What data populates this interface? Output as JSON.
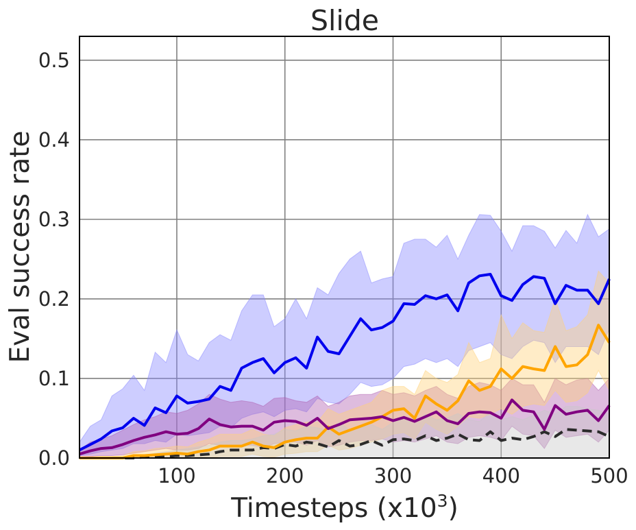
{
  "chart_data": {
    "type": "line",
    "title": "Slide",
    "xlabel": "Timesteps (x10",
    "xlabel_sup": "3",
    "xlabel_close": ")",
    "ylabel": "Eval success rate",
    "xlim": [
      10,
      500
    ],
    "ylim": [
      0,
      0.53
    ],
    "xticks": [
      100,
      200,
      300,
      400,
      500
    ],
    "yticks": [
      0.0,
      0.1,
      0.2,
      0.3,
      0.4,
      0.5
    ],
    "xtick_labels": [
      "100",
      "200",
      "300",
      "400",
      "500"
    ],
    "ytick_labels": [
      "0.0",
      "0.1",
      "0.2",
      "0.3",
      "0.4",
      "0.5"
    ],
    "grid": true,
    "x": [
      10,
      20,
      30,
      40,
      50,
      60,
      70,
      80,
      90,
      100,
      110,
      120,
      130,
      140,
      150,
      160,
      170,
      180,
      190,
      200,
      210,
      220,
      230,
      240,
      250,
      260,
      270,
      280,
      290,
      300,
      310,
      320,
      330,
      340,
      350,
      360,
      370,
      380,
      390,
      400,
      410,
      420,
      430,
      440,
      450,
      460,
      470,
      480,
      490,
      500
    ],
    "series": [
      {
        "color": "#0000ee",
        "fill": "#8888ff",
        "dash": false,
        "mean": [
          0.01,
          0.017,
          0.024,
          0.034,
          0.038,
          0.05,
          0.041,
          0.063,
          0.057,
          0.078,
          0.069,
          0.071,
          0.074,
          0.09,
          0.085,
          0.113,
          0.12,
          0.125,
          0.107,
          0.12,
          0.126,
          0.113,
          0.152,
          0.134,
          0.131,
          0.153,
          0.175,
          0.161,
          0.164,
          0.172,
          0.194,
          0.193,
          0.204,
          0.2,
          0.205,
          0.185,
          0.22,
          0.229,
          0.231,
          0.204,
          0.198,
          0.218,
          0.228,
          0.226,
          0.194,
          0.217,
          0.211,
          0.211,
          0.194,
          0.225
        ],
        "upper": [
          0.02,
          0.04,
          0.048,
          0.078,
          0.087,
          0.104,
          0.085,
          0.133,
          0.12,
          0.161,
          0.13,
          0.122,
          0.145,
          0.155,
          0.148,
          0.185,
          0.205,
          0.205,
          0.165,
          0.175,
          0.2,
          0.175,
          0.214,
          0.205,
          0.232,
          0.25,
          0.26,
          0.22,
          0.225,
          0.228,
          0.27,
          0.275,
          0.275,
          0.265,
          0.28,
          0.25,
          0.28,
          0.306,
          0.305,
          0.285,
          0.26,
          0.292,
          0.292,
          0.285,
          0.264,
          0.286,
          0.27,
          0.306,
          0.278,
          0.288
        ],
        "lower": [
          0.003,
          0.005,
          0.008,
          0.01,
          0.012,
          0.018,
          0.018,
          0.022,
          0.02,
          0.03,
          0.028,
          0.03,
          0.032,
          0.04,
          0.038,
          0.05,
          0.055,
          0.058,
          0.052,
          0.06,
          0.062,
          0.058,
          0.075,
          0.07,
          0.068,
          0.08,
          0.095,
          0.09,
          0.092,
          0.1,
          0.115,
          0.118,
          0.125,
          0.12,
          0.125,
          0.115,
          0.135,
          0.14,
          0.145,
          0.13,
          0.125,
          0.14,
          0.148,
          0.145,
          0.12,
          0.14,
          0.14,
          0.14,
          0.13,
          0.162
        ]
      },
      {
        "color": "#800080",
        "fill": "#b060b0",
        "dash": false,
        "mean": [
          0.005,
          0.009,
          0.012,
          0.013,
          0.017,
          0.022,
          0.026,
          0.029,
          0.033,
          0.03,
          0.031,
          0.037,
          0.049,
          0.042,
          0.039,
          0.04,
          0.04,
          0.035,
          0.045,
          0.047,
          0.046,
          0.041,
          0.05,
          0.037,
          0.042,
          0.048,
          0.049,
          0.05,
          0.052,
          0.047,
          0.051,
          0.046,
          0.052,
          0.058,
          0.047,
          0.043,
          0.056,
          0.058,
          0.057,
          0.05,
          0.073,
          0.06,
          0.058,
          0.036,
          0.066,
          0.055,
          0.058,
          0.06,
          0.047,
          0.066
        ],
        "upper": [
          0.01,
          0.02,
          0.024,
          0.028,
          0.035,
          0.042,
          0.048,
          0.052,
          0.058,
          0.056,
          0.06,
          0.068,
          0.08,
          0.074,
          0.07,
          0.072,
          0.07,
          0.065,
          0.075,
          0.076,
          0.072,
          0.07,
          0.078,
          0.065,
          0.07,
          0.078,
          0.08,
          0.08,
          0.085,
          0.08,
          0.082,
          0.078,
          0.085,
          0.09,
          0.08,
          0.075,
          0.09,
          0.095,
          0.092,
          0.085,
          0.1,
          0.092,
          0.092,
          0.07,
          0.1,
          0.092,
          0.098,
          0.1,
          0.085,
          0.1
        ],
        "lower": [
          0.001,
          0.002,
          0.003,
          0.003,
          0.004,
          0.006,
          0.008,
          0.01,
          0.012,
          0.01,
          0.01,
          0.012,
          0.018,
          0.016,
          0.014,
          0.016,
          0.016,
          0.013,
          0.018,
          0.02,
          0.02,
          0.016,
          0.022,
          0.014,
          0.016,
          0.02,
          0.022,
          0.022,
          0.024,
          0.02,
          0.022,
          0.02,
          0.024,
          0.028,
          0.02,
          0.018,
          0.026,
          0.028,
          0.026,
          0.022,
          0.04,
          0.03,
          0.028,
          0.012,
          0.035,
          0.026,
          0.028,
          0.03,
          0.02,
          0.035
        ]
      },
      {
        "color": "#ffa500",
        "fill": "#ffd27a",
        "dash": false,
        "mean": [
          0.0,
          0.0,
          0.0,
          0.0,
          0.0,
          0.003,
          0.003,
          0.004,
          0.005,
          0.006,
          0.005,
          0.008,
          0.01,
          0.015,
          0.015,
          0.015,
          0.02,
          0.015,
          0.013,
          0.02,
          0.023,
          0.025,
          0.025,
          0.039,
          0.03,
          0.035,
          0.04,
          0.045,
          0.052,
          0.06,
          0.062,
          0.05,
          0.078,
          0.068,
          0.06,
          0.072,
          0.097,
          0.085,
          0.09,
          0.112,
          0.1,
          0.115,
          0.112,
          0.11,
          0.14,
          0.115,
          0.117,
          0.13,
          0.167,
          0.145
        ],
        "upper": [
          0.001,
          0.001,
          0.002,
          0.002,
          0.003,
          0.008,
          0.009,
          0.012,
          0.013,
          0.015,
          0.014,
          0.02,
          0.024,
          0.03,
          0.03,
          0.03,
          0.036,
          0.03,
          0.028,
          0.038,
          0.042,
          0.045,
          0.045,
          0.062,
          0.055,
          0.06,
          0.065,
          0.07,
          0.085,
          0.09,
          0.09,
          0.08,
          0.11,
          0.1,
          0.095,
          0.105,
          0.145,
          0.12,
          0.125,
          0.18,
          0.15,
          0.17,
          0.16,
          0.158,
          0.2,
          0.16,
          0.165,
          0.18,
          0.235,
          0.22
        ],
        "lower": [
          0.0,
          0.0,
          0.0,
          0.0,
          0.0,
          0.0,
          0.0,
          0.0,
          0.0,
          0.0,
          0.0,
          0.0,
          0.0,
          0.002,
          0.002,
          0.002,
          0.005,
          0.002,
          0.001,
          0.005,
          0.006,
          0.008,
          0.008,
          0.016,
          0.01,
          0.012,
          0.016,
          0.02,
          0.024,
          0.03,
          0.032,
          0.024,
          0.045,
          0.036,
          0.03,
          0.04,
          0.052,
          0.05,
          0.055,
          0.062,
          0.055,
          0.065,
          0.068,
          0.066,
          0.085,
          0.07,
          0.072,
          0.082,
          0.11,
          0.085
        ]
      },
      {
        "color": "#2b2b2b",
        "fill": "#c8c8c8",
        "dash": true,
        "mean": [
          0.0,
          0.0,
          0.0,
          0.0,
          0.0,
          0.0,
          0.001,
          0.002,
          0.002,
          0.003,
          0.003,
          0.004,
          0.005,
          0.008,
          0.01,
          0.01,
          0.01,
          0.013,
          0.012,
          0.017,
          0.015,
          0.02,
          0.018,
          0.014,
          0.022,
          0.015,
          0.017,
          0.022,
          0.016,
          0.023,
          0.024,
          0.022,
          0.028,
          0.022,
          0.025,
          0.03,
          0.023,
          0.022,
          0.033,
          0.022,
          0.025,
          0.023,
          0.027,
          0.033,
          0.027,
          0.036,
          0.035,
          0.034,
          0.033,
          0.027
        ],
        "upper": [
          0.0,
          0.0,
          0.0,
          0.001,
          0.001,
          0.002,
          0.004,
          0.006,
          0.008,
          0.01,
          0.012,
          0.014,
          0.016,
          0.02,
          0.022,
          0.022,
          0.024,
          0.028,
          0.03,
          0.036,
          0.034,
          0.04,
          0.038,
          0.034,
          0.045,
          0.035,
          0.038,
          0.042,
          0.036,
          0.045,
          0.05,
          0.045,
          0.055,
          0.048,
          0.05,
          0.056,
          0.048,
          0.046,
          0.058,
          0.048,
          0.052,
          0.048,
          0.054,
          0.06,
          0.055,
          0.065,
          0.065,
          0.062,
          0.06,
          0.055
        ],
        "lower": [
          0.0,
          0.0,
          0.0,
          0.0,
          0.0,
          0.0,
          0.0,
          0.0,
          0.0,
          0.0,
          0.0,
          0.0,
          0.0,
          0.0,
          0.0,
          0.0,
          0.0,
          0.0,
          0.0,
          0.0,
          0.0,
          0.0,
          0.0,
          0.0,
          0.0,
          0.0,
          0.0,
          0.0,
          0.0,
          0.0,
          0.0,
          0.0,
          0.0,
          0.0,
          0.0,
          0.0,
          0.0,
          0.0,
          0.0,
          0.0,
          0.0,
          0.0,
          0.0,
          0.0,
          0.0,
          0.0,
          0.0,
          0.0,
          0.0,
          0.0
        ]
      }
    ]
  }
}
